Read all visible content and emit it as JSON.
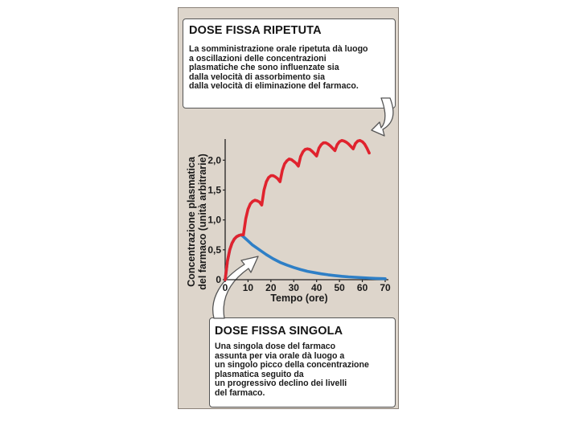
{
  "top_callout": {
    "title": "DOSE FISSA RIPETUTA",
    "lines": [
      "La somministrazione orale ripetuta dà luogo",
      "a oscillazioni delle concentrazioni",
      "plasmatiche che sono influenzate sia",
      "dalla velocità di assorbimento sia",
      "dalla velocità di eliminazione del farmaco."
    ]
  },
  "bottom_callout": {
    "title": "DOSE FISSA SINGOLA",
    "lines": [
      "Una singola dose del farmaco",
      "assunta per via orale dà luogo a",
      "un singolo picco della concentrazione",
      "plasmatica seguito da",
      "un progressivo declino dei livelli",
      "del farmaco."
    ]
  },
  "chart_data": {
    "type": "line",
    "xlabel": "Tempo (ore)",
    "ylabel_lines": [
      "Concentrazione plasmatica",
      "del farmaco (unità arbitrarie)"
    ],
    "xlim": [
      0,
      70
    ],
    "ylim": [
      0,
      2.3
    ],
    "x_ticks": [
      0,
      10,
      20,
      30,
      40,
      50,
      60,
      70
    ],
    "x_tick_labels": [
      "0",
      "10",
      "20",
      "30",
      "40",
      "50",
      "60",
      "70"
    ],
    "y_ticks": [
      0,
      0.5,
      1.0,
      1.5,
      2.0
    ],
    "y_tick_labels": [
      "0",
      "0,5",
      "1,0",
      "1,5",
      "2,0"
    ],
    "grid": false,
    "series": [
      {
        "color": "#e0232e",
        "x": [
          0,
          1,
          2,
          3,
          4,
          5,
          6,
          7,
          8,
          9,
          10,
          11,
          12,
          13,
          14,
          15,
          16,
          17,
          18,
          19,
          20,
          21,
          22,
          23,
          24,
          25,
          26,
          27,
          28,
          29,
          30,
          31,
          32,
          33,
          34,
          35,
          36,
          37,
          38,
          39,
          40,
          41,
          42,
          43,
          44,
          45,
          46,
          47,
          48,
          49,
          50,
          51,
          52,
          53,
          54,
          55,
          56,
          57,
          58,
          59,
          60,
          61,
          62,
          63
        ],
        "y": [
          0,
          0.31,
          0.5,
          0.61,
          0.68,
          0.72,
          0.74,
          0.75,
          0.75,
          1.02,
          1.18,
          1.27,
          1.31,
          1.33,
          1.32,
          1.3,
          1.25,
          1.5,
          1.64,
          1.71,
          1.74,
          1.74,
          1.72,
          1.69,
          1.64,
          1.83,
          1.94,
          1.99,
          2.02,
          2.01,
          1.98,
          1.95,
          1.9,
          2.06,
          2.14,
          2.18,
          2.19,
          2.18,
          2.15,
          2.11,
          2.07,
          2.2,
          2.26,
          2.29,
          2.29,
          2.27,
          2.24,
          2.2,
          2.16,
          2.26,
          2.31,
          2.33,
          2.32,
          2.3,
          2.27,
          2.23,
          2.19,
          2.28,
          2.32,
          2.33,
          2.31,
          2.27,
          2.2,
          2.12
        ]
      },
      {
        "color": "#2e7fc6",
        "x": [
          0,
          1,
          2,
          3,
          4,
          5,
          6,
          7,
          8,
          10,
          12,
          15,
          18,
          21,
          24,
          27,
          30,
          33,
          36,
          39,
          42,
          45,
          48,
          51,
          54,
          57,
          60,
          63,
          66,
          69,
          70
        ],
        "y": [
          0,
          0.31,
          0.5,
          0.61,
          0.68,
          0.72,
          0.74,
          0.75,
          0.72,
          0.65,
          0.58,
          0.5,
          0.42,
          0.35,
          0.29,
          0.245,
          0.205,
          0.17,
          0.14,
          0.118,
          0.098,
          0.082,
          0.068,
          0.056,
          0.047,
          0.04,
          0.033,
          0.027,
          0.022,
          0.018,
          0.016
        ]
      }
    ]
  }
}
